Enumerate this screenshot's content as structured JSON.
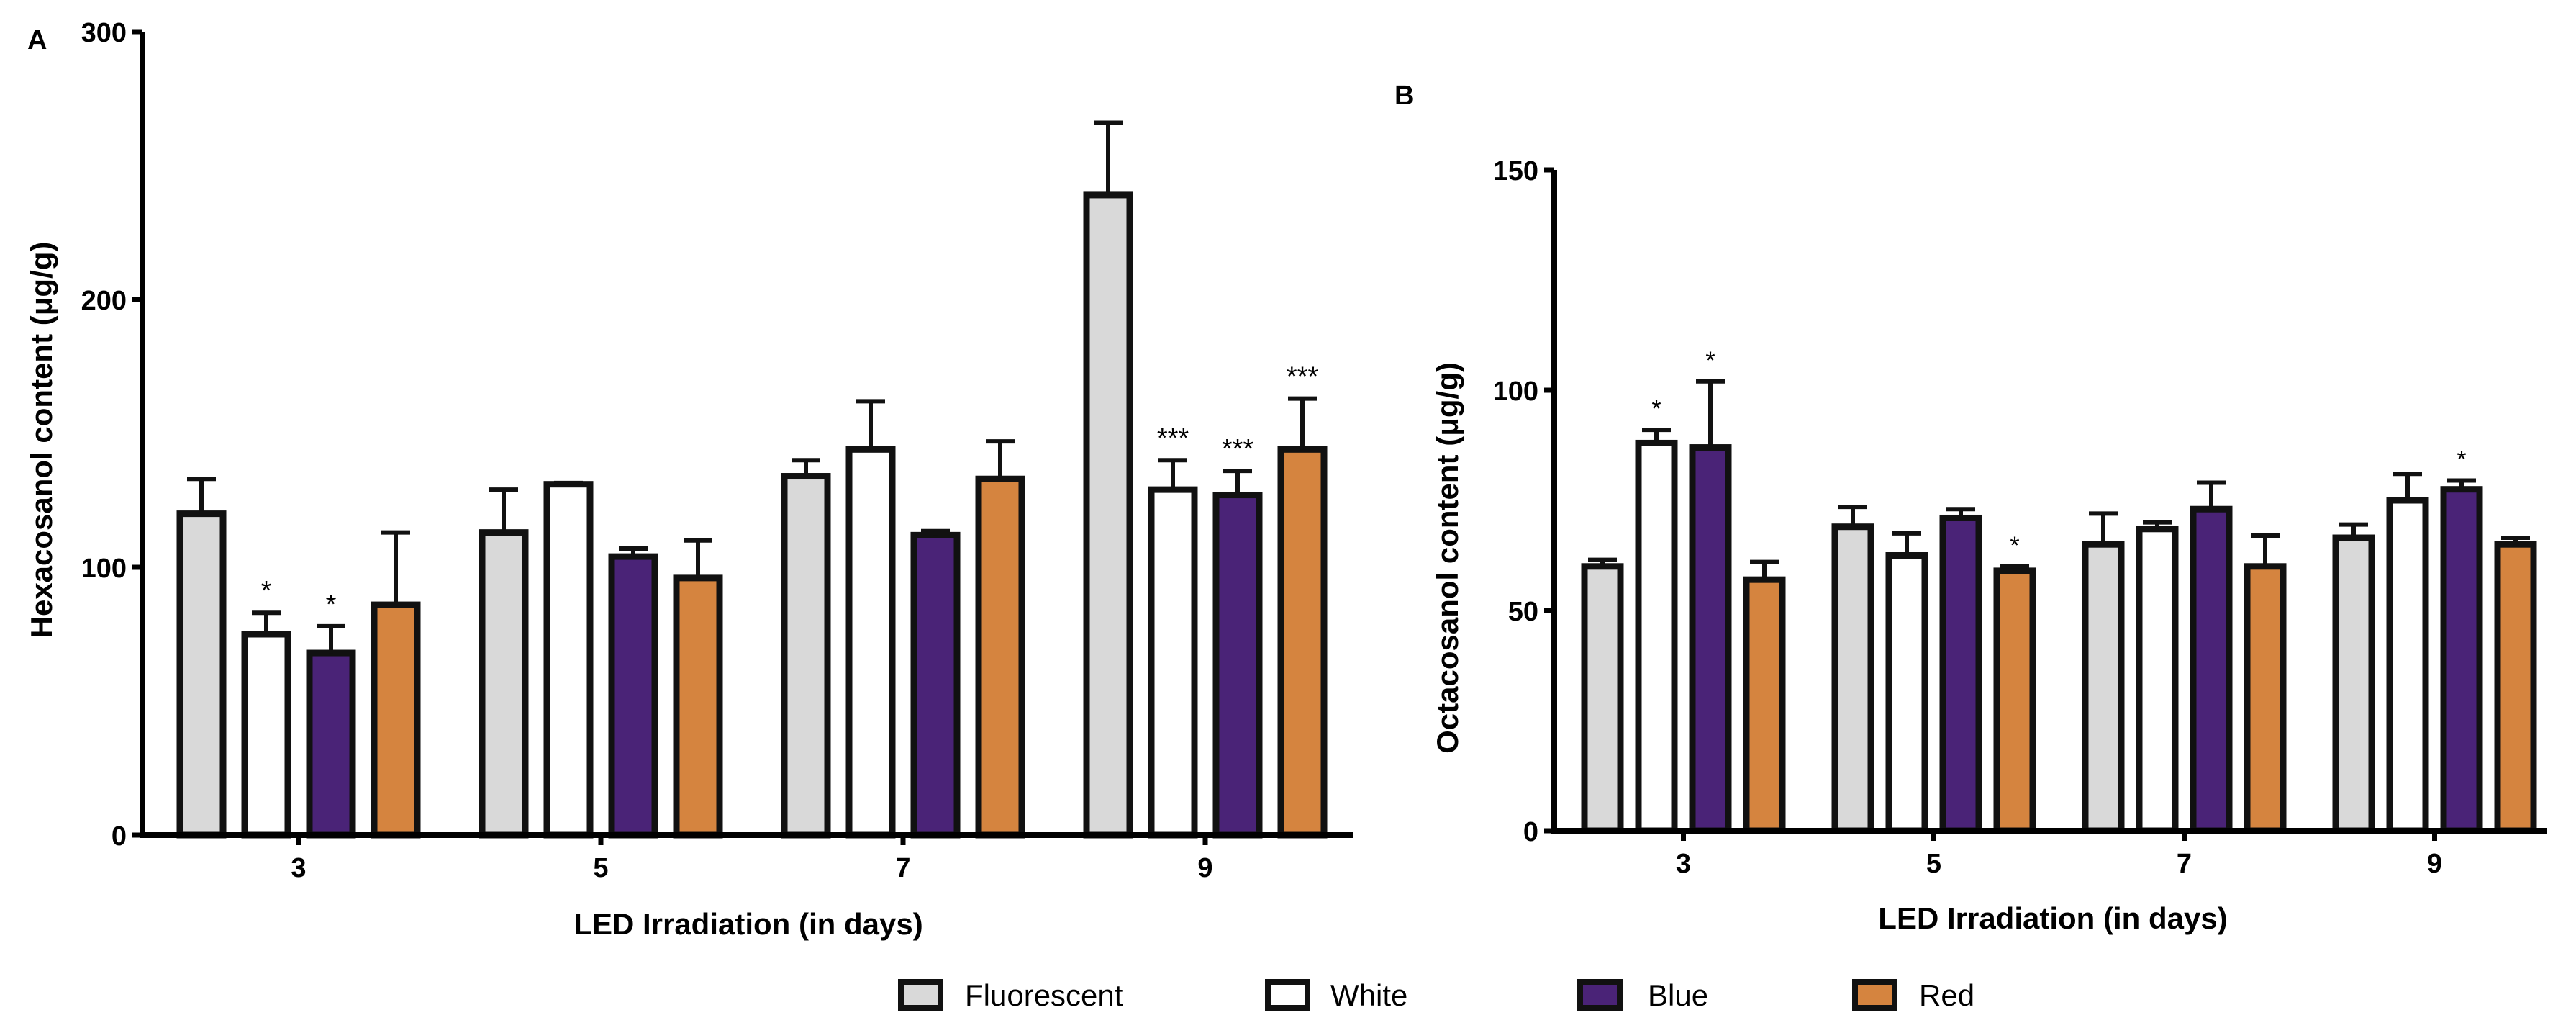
{
  "colors": {
    "Fluorescent": "#d9d9d9",
    "White": "#ffffff",
    "Blue": "#4a2377",
    "Red": "#d5843f",
    "stroke": "#111111"
  },
  "legend": {
    "items": [
      {
        "label": "Fluorescent",
        "color": "#d9d9d9"
      },
      {
        "label": "White",
        "color": "#ffffff"
      },
      {
        "label": "Blue",
        "color": "#4a2377"
      },
      {
        "label": "Red",
        "color": "#d5843f"
      }
    ]
  },
  "chart_data": [
    {
      "panel": "A",
      "type": "bar",
      "title": "",
      "xlabel": "LED Irradiation (in days)",
      "ylabel": "Hexacosanol content (μg/g)",
      "ylim": [
        0,
        300
      ],
      "yticks": [
        0,
        100,
        200,
        300
      ],
      "categories": [
        "3",
        "5",
        "7",
        "9"
      ],
      "series": [
        {
          "name": "Fluorescent",
          "values": [
            120,
            113,
            134,
            239
          ],
          "errors": [
            13,
            16,
            6,
            27
          ],
          "annotations": [
            "",
            "",
            "",
            ""
          ]
        },
        {
          "name": "White",
          "values": [
            75,
            131,
            144,
            129
          ],
          "errors": [
            8,
            0.5,
            18,
            11
          ],
          "annotations": [
            "*",
            "",
            "",
            "***"
          ]
        },
        {
          "name": "Blue",
          "values": [
            68,
            104,
            112,
            127
          ],
          "errors": [
            10,
            3,
            1.5,
            9
          ],
          "annotations": [
            "*",
            "",
            "",
            "***"
          ]
        },
        {
          "name": "Red",
          "values": [
            86,
            96,
            133,
            144
          ],
          "errors": [
            27,
            14,
            14,
            19
          ],
          "annotations": [
            "",
            "",
            "",
            "***"
          ]
        }
      ]
    },
    {
      "panel": "B",
      "type": "bar",
      "title": "",
      "xlabel": "LED Irradiation (in days)",
      "ylabel": "Octacosanol content (μg/g)",
      "ylim": [
        0,
        150
      ],
      "yticks": [
        0,
        50,
        100,
        150
      ],
      "categories": [
        "3",
        "5",
        "7",
        "9"
      ],
      "series": [
        {
          "name": "Fluorescent",
          "values": [
            60,
            69,
            65,
            66.5
          ],
          "errors": [
            1.5,
            4.5,
            7,
            3
          ]
        },
        {
          "name": "White",
          "values": [
            88,
            62.5,
            68.5,
            75
          ],
          "errors": [
            3,
            5,
            1.5,
            6
          ],
          "annotations": [
            "*",
            "",
            "",
            ""
          ]
        },
        {
          "name": "Blue",
          "values": [
            87,
            71,
            73,
            77.5
          ],
          "errors": [
            15,
            2,
            6,
            2
          ],
          "annotations": [
            "*",
            "",
            "",
            "*"
          ]
        },
        {
          "name": "Red",
          "values": [
            57,
            59,
            60,
            65
          ],
          "errors": [
            4,
            1,
            7,
            1.5
          ],
          "annotations": [
            "",
            "*",
            "",
            ""
          ]
        }
      ]
    }
  ]
}
